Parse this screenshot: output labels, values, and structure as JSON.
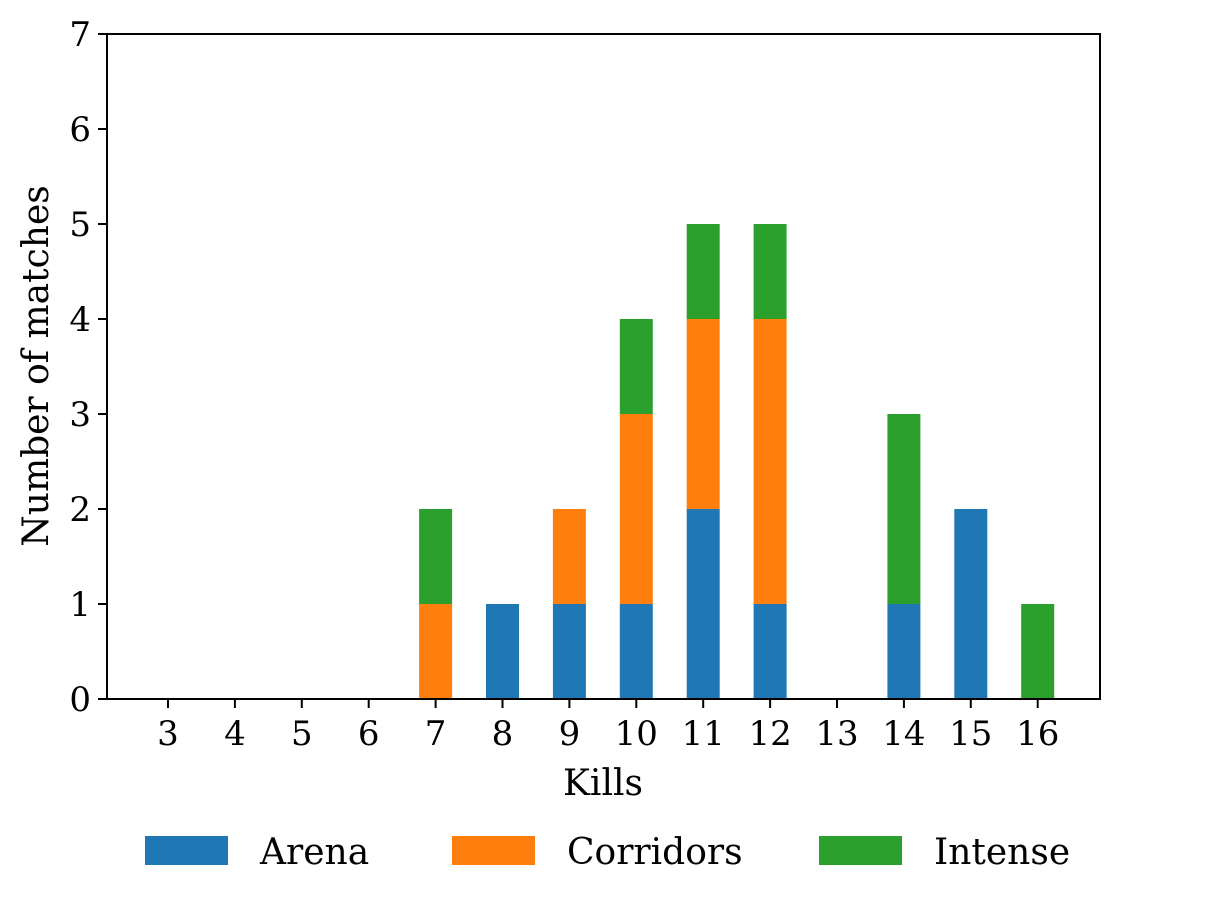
{
  "chart_data": {
    "type": "bar",
    "stacked": true,
    "categories": [
      "3",
      "4",
      "5",
      "6",
      "7",
      "8",
      "9",
      "10",
      "11",
      "12",
      "13",
      "14",
      "15",
      "16"
    ],
    "series": [
      {
        "name": "Arena",
        "color": "#1f77b4",
        "values": [
          0,
          0,
          0,
          0,
          0,
          1,
          1,
          1,
          2,
          1,
          0,
          1,
          2,
          0
        ]
      },
      {
        "name": "Corridors",
        "color": "#ff7f0e",
        "values": [
          0,
          0,
          0,
          0,
          1,
          0,
          1,
          2,
          2,
          3,
          0,
          0,
          0,
          0
        ]
      },
      {
        "name": "Intense",
        "color": "#2ca02c",
        "values": [
          0,
          0,
          0,
          0,
          1,
          0,
          0,
          1,
          1,
          1,
          0,
          2,
          0,
          1
        ]
      }
    ],
    "xlabel": "Kills",
    "ylabel": "Number of matches",
    "ylim": [
      0,
      7
    ],
    "yticks": [
      0,
      1,
      2,
      3,
      4,
      5,
      6,
      7
    ],
    "grid": false,
    "legend_position": "bottom"
  }
}
